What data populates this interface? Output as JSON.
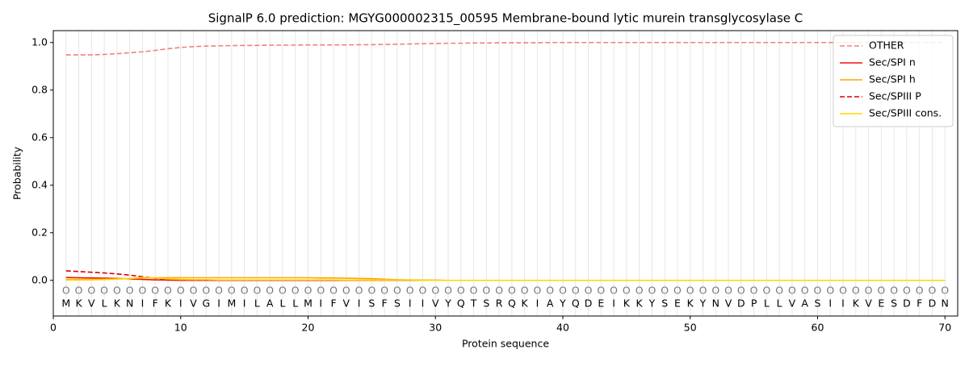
{
  "chart_data": {
    "type": "line",
    "title": "SignalP 6.0 prediction: MGYG000002315_00595 Membrane-bound lytic murein transglycosylase C",
    "x_label": "Protein sequence",
    "y_label": "Probability",
    "x": [
      1,
      2,
      3,
      4,
      5,
      6,
      7,
      8,
      9,
      10,
      11,
      12,
      13,
      14,
      15,
      16,
      17,
      18,
      19,
      20,
      21,
      22,
      23,
      24,
      25,
      26,
      27,
      28,
      29,
      30,
      31,
      32,
      33,
      34,
      35,
      36,
      37,
      38,
      39,
      40,
      41,
      42,
      43,
      44,
      45,
      46,
      47,
      48,
      49,
      50,
      51,
      52,
      53,
      54,
      55,
      56,
      57,
      58,
      59,
      60,
      61,
      62,
      63,
      64,
      65,
      66,
      67,
      68,
      69,
      70
    ],
    "sequence": [
      "M",
      "K",
      "V",
      "L",
      "K",
      "N",
      "I",
      "F",
      "K",
      "I",
      "V",
      "G",
      "I",
      "M",
      "I",
      "L",
      "A",
      "L",
      "L",
      "M",
      "I",
      "F",
      "V",
      "I",
      "S",
      "F",
      "S",
      "I",
      "I",
      "V",
      "Y",
      "Q",
      "T",
      "S",
      "R",
      "Q",
      "K",
      "I",
      "A",
      "Y",
      "Q",
      "D",
      "E",
      "I",
      "K",
      "K",
      "Y",
      "S",
      "E",
      "K",
      "Y",
      "N",
      "V",
      "D",
      "P",
      "L",
      "L",
      "V",
      "A",
      "S",
      "I",
      "I",
      "K",
      "V",
      "E",
      "S",
      "D",
      "F",
      "D",
      "N"
    ],
    "labels": [
      "O",
      "O",
      "O",
      "O",
      "O",
      "O",
      "O",
      "O",
      "O",
      "O",
      "O",
      "O",
      "O",
      "O",
      "O",
      "O",
      "O",
      "O",
      "O",
      "O",
      "O",
      "O",
      "O",
      "O",
      "O",
      "O",
      "O",
      "O",
      "O",
      "O",
      "O",
      "O",
      "O",
      "O",
      "O",
      "O",
      "O",
      "O",
      "O",
      "O",
      "O",
      "O",
      "O",
      "O",
      "O",
      "O",
      "O",
      "O",
      "O",
      "O",
      "O",
      "O",
      "O",
      "O",
      "O",
      "O",
      "O",
      "O",
      "O",
      "O",
      "O",
      "O",
      "O",
      "O",
      "O",
      "O",
      "O",
      "O",
      "O",
      "O"
    ],
    "series": [
      {
        "name": "OTHER",
        "color": "#f08080",
        "dash": true,
        "values": [
          0.948,
          0.948,
          0.948,
          0.95,
          0.953,
          0.957,
          0.961,
          0.967,
          0.974,
          0.979,
          0.983,
          0.985,
          0.986,
          0.987,
          0.988,
          0.988,
          0.989,
          0.989,
          0.989,
          0.99,
          0.99,
          0.99,
          0.99,
          0.991,
          0.991,
          0.992,
          0.993,
          0.994,
          0.995,
          0.996,
          0.997,
          0.997,
          0.998,
          0.998,
          0.999,
          0.999,
          0.999,
          0.999,
          1.0,
          1.0,
          1.0,
          1.0,
          1.0,
          1.0,
          1.0,
          1.0,
          1.0,
          1.0,
          1.0,
          1.0,
          1.0,
          1.0,
          1.0,
          1.0,
          1.0,
          1.0,
          1.0,
          1.0,
          1.0,
          1.0,
          1.0,
          1.0,
          1.0,
          1.0,
          1.0,
          1.0,
          1.0,
          1.0,
          1.0,
          1.0
        ]
      },
      {
        "name": "Sec/SPI n",
        "color": "#ee1111",
        "dash": false,
        "values": [
          0.012,
          0.011,
          0.01,
          0.009,
          0.008,
          0.006,
          0.004,
          0.002,
          0.001,
          0,
          0,
          0,
          0,
          0,
          0,
          0,
          0,
          0,
          0,
          0,
          0,
          0,
          0,
          0,
          0,
          0,
          0,
          0,
          0,
          0,
          0,
          0,
          0,
          0,
          0,
          0,
          0,
          0,
          0,
          0,
          0,
          0,
          0,
          0,
          0,
          0,
          0,
          0,
          0,
          0,
          0,
          0,
          0,
          0,
          0,
          0,
          0,
          0,
          0,
          0,
          0,
          0,
          0,
          0,
          0,
          0,
          0,
          0,
          0,
          0
        ]
      },
      {
        "name": "Sec/SPI h",
        "color": "#ffa500",
        "dash": false,
        "values": [
          0.004,
          0.004,
          0.004,
          0.005,
          0.006,
          0.008,
          0.01,
          0.011,
          0.011,
          0.011,
          0.011,
          0.011,
          0.011,
          0.011,
          0.011,
          0.011,
          0.011,
          0.011,
          0.011,
          0.011,
          0.01,
          0.01,
          0.009,
          0.008,
          0.007,
          0.005,
          0.003,
          0.002,
          0.001,
          0.001,
          0,
          0,
          0,
          0,
          0,
          0,
          0,
          0,
          0,
          0,
          0,
          0,
          0,
          0,
          0,
          0,
          0,
          0,
          0,
          0,
          0,
          0,
          0,
          0,
          0,
          0,
          0,
          0,
          0,
          0,
          0,
          0,
          0,
          0,
          0,
          0,
          0,
          0,
          0,
          0
        ]
      },
      {
        "name": "Sec/SPIII P",
        "color": "#dd0000",
        "dash": true,
        "values": [
          0.04,
          0.037,
          0.034,
          0.031,
          0.027,
          0.022,
          0.015,
          0.009,
          0.004,
          0.001,
          0,
          0,
          0,
          0,
          0,
          0,
          0,
          0,
          0,
          0,
          0,
          0,
          0,
          0,
          0,
          0,
          0,
          0,
          0,
          0,
          0,
          0,
          0,
          0,
          0,
          0,
          0,
          0,
          0,
          0,
          0,
          0,
          0,
          0,
          0,
          0,
          0,
          0,
          0,
          0,
          0,
          0,
          0,
          0,
          0,
          0,
          0,
          0,
          0,
          0,
          0,
          0,
          0,
          0,
          0,
          0,
          0,
          0,
          0,
          0
        ]
      },
      {
        "name": "Sec/SPIII cons.",
        "color": "#ffd700",
        "dash": false,
        "values": [
          0.001,
          0.001,
          0.002,
          0.003,
          0.005,
          0.008,
          0.012,
          0.01,
          0.006,
          0.004,
          0.003,
          0.003,
          0.002,
          0.002,
          0.002,
          0.002,
          0.002,
          0.002,
          0.002,
          0.002,
          0.002,
          0.002,
          0.001,
          0.001,
          0.001,
          0.001,
          0.001,
          0.001,
          0,
          0,
          0,
          0,
          0,
          0,
          0,
          0,
          0,
          0,
          0,
          0,
          0,
          0,
          0,
          0,
          0,
          0,
          0,
          0,
          0,
          0,
          0,
          0,
          0,
          0,
          0,
          0,
          0,
          0,
          0,
          0,
          0,
          0,
          0,
          0,
          0,
          0,
          0,
          0,
          0,
          0
        ]
      }
    ],
    "xlim": [
      0,
      71
    ],
    "ylim": [
      -0.15,
      1.05
    ],
    "xticks": [
      0,
      10,
      20,
      30,
      40,
      50,
      60,
      70
    ],
    "yticks": [
      {
        "value": 0,
        "label": "0.0"
      },
      {
        "value": 0.2,
        "label": "0.2"
      },
      {
        "value": 0.4,
        "label": "0.4"
      },
      {
        "value": 0.6,
        "label": "0.6"
      },
      {
        "value": 0.8,
        "label": "0.8"
      },
      {
        "value": 1,
        "label": "1.0"
      }
    ],
    "legend": "upper right"
  }
}
